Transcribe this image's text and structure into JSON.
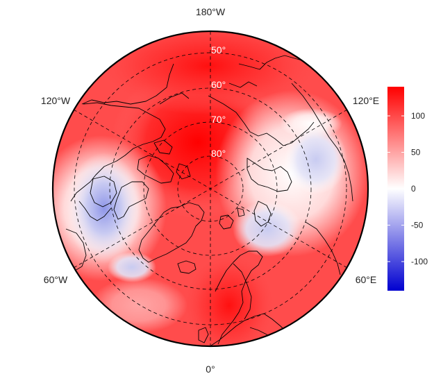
{
  "map": {
    "projection": "north-polar-stereographic",
    "field": "anomaly",
    "longitude_labels": {
      "top": "180°W",
      "upper_left": "120°W",
      "upper_right": "120°E",
      "lower_left": "60°W",
      "lower_right": "60°E",
      "bottom": "0°"
    },
    "latitude_labels": [
      "50°",
      "60°",
      "70°",
      "80°"
    ],
    "colorbar": {
      "min": -140,
      "max": 140,
      "ticks": [
        {
          "value": 100,
          "label": "100"
        },
        {
          "value": 50,
          "label": "50"
        },
        {
          "value": 0,
          "label": "0"
        },
        {
          "value": -50,
          "label": "-50"
        },
        {
          "value": -100,
          "label": "-100"
        }
      ],
      "colors": {
        "low": "#0000d0",
        "mid": "#ffffff",
        "high": "#ff0000"
      }
    }
  }
}
